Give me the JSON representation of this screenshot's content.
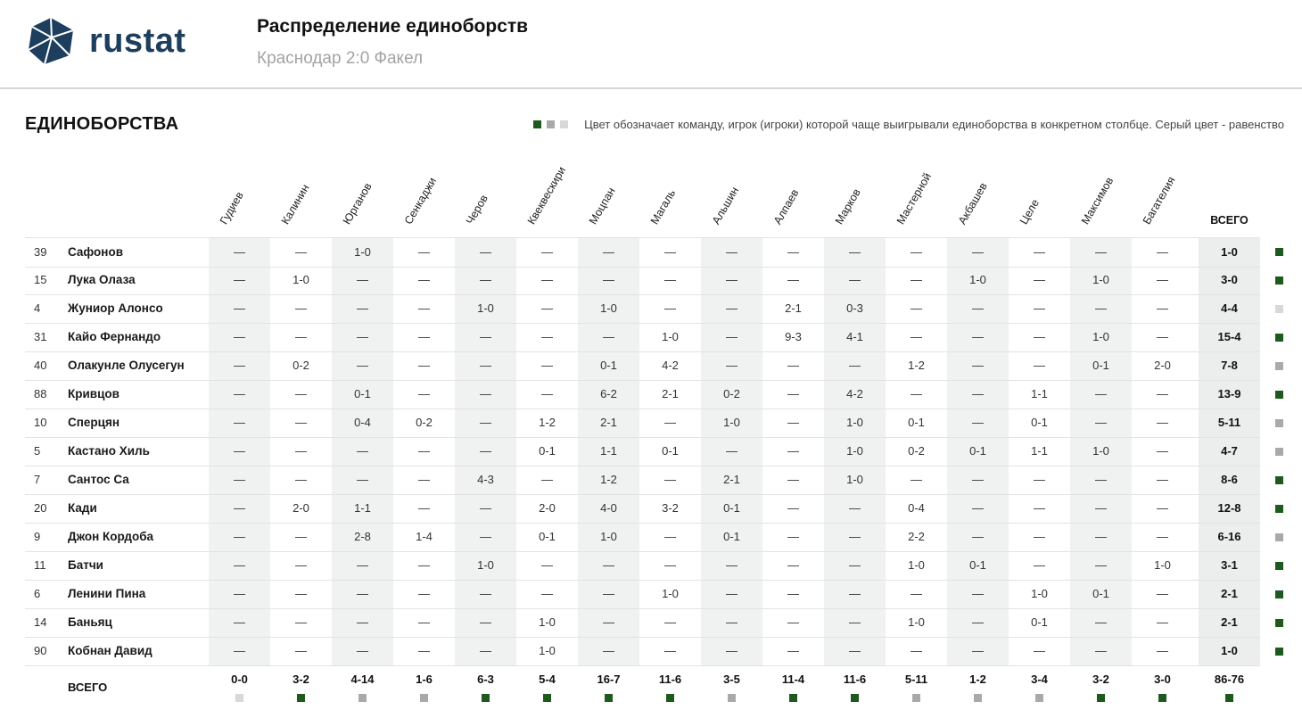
{
  "brand": {
    "logo_text": "rustat",
    "logo_icon": "rustat-logo-icon",
    "color": "#1d3e5c"
  },
  "header": {
    "title": "Распределение единоборств",
    "subtitle": "Краснодар 2:0 Факел"
  },
  "section": {
    "title": "ЕДИНОБОРСТВА"
  },
  "legend": {
    "text": "Цвет обозначает команду, игрок (игроки) которой чаще выигрывали единоборства в конкретном столбце. Серый цвет - равенство",
    "swatches": [
      {
        "team": "Краснодар",
        "color": "#1e5a1e"
      },
      {
        "team": "Факел",
        "color": "#a9a9a9"
      },
      {
        "team": "Равенство",
        "color": "#d8d8d8"
      }
    ]
  },
  "colors": {
    "dark": "#1e5a1e",
    "gray": "#a9a9a9",
    "light": "#d8d8d8"
  },
  "table": {
    "columns": [
      "Гудиев",
      "Калинин",
      "Юрганов",
      "Сенкаджи",
      "Черов",
      "Квеквескири",
      "Моцпан",
      "Магаль",
      "Альшин",
      "Алпаев",
      "Марков",
      "Мастерной",
      "Акбашев",
      "Целе",
      "Максимов",
      "Багателия"
    ],
    "total_label": "ВСЕГО",
    "rows": [
      {
        "number": "39",
        "name": "Сафонов",
        "cells": [
          "—",
          "—",
          "1-0",
          "—",
          "—",
          "—",
          "—",
          "—",
          "—",
          "—",
          "—",
          "—",
          "—",
          "—",
          "—",
          "—"
        ],
        "total": "1-0",
        "swatch": "dark"
      },
      {
        "number": "15",
        "name": "Лука Олаза",
        "cells": [
          "—",
          "1-0",
          "—",
          "—",
          "—",
          "—",
          "—",
          "—",
          "—",
          "—",
          "—",
          "—",
          "1-0",
          "—",
          "1-0",
          "—"
        ],
        "total": "3-0",
        "swatch": "dark"
      },
      {
        "number": "4",
        "name": "Жуниор Алонсо",
        "cells": [
          "—",
          "—",
          "—",
          "—",
          "1-0",
          "—",
          "1-0",
          "—",
          "—",
          "2-1",
          "0-3",
          "—",
          "—",
          "—",
          "—",
          "—"
        ],
        "total": "4-4",
        "swatch": "light"
      },
      {
        "number": "31",
        "name": "Кайо Фернандо",
        "cells": [
          "—",
          "—",
          "—",
          "—",
          "—",
          "—",
          "—",
          "1-0",
          "—",
          "9-3",
          "4-1",
          "—",
          "—",
          "—",
          "1-0",
          "—"
        ],
        "total": "15-4",
        "swatch": "dark"
      },
      {
        "number": "40",
        "name": "Олакунле Олусегун",
        "cells": [
          "—",
          "0-2",
          "—",
          "—",
          "—",
          "—",
          "0-1",
          "4-2",
          "—",
          "—",
          "—",
          "1-2",
          "—",
          "—",
          "0-1",
          "2-0"
        ],
        "total": "7-8",
        "swatch": "gray"
      },
      {
        "number": "88",
        "name": "Кривцов",
        "cells": [
          "—",
          "—",
          "0-1",
          "—",
          "—",
          "—",
          "6-2",
          "2-1",
          "0-2",
          "—",
          "4-2",
          "—",
          "—",
          "1-1",
          "—",
          "—"
        ],
        "total": "13-9",
        "swatch": "dark"
      },
      {
        "number": "10",
        "name": "Сперцян",
        "cells": [
          "—",
          "—",
          "0-4",
          "0-2",
          "—",
          "1-2",
          "2-1",
          "—",
          "1-0",
          "—",
          "1-0",
          "0-1",
          "—",
          "0-1",
          "—",
          "—"
        ],
        "total": "5-11",
        "swatch": "gray"
      },
      {
        "number": "5",
        "name": "Кастано Хиль",
        "cells": [
          "—",
          "—",
          "—",
          "—",
          "—",
          "0-1",
          "1-1",
          "0-1",
          "—",
          "—",
          "1-0",
          "0-2",
          "0-1",
          "1-1",
          "1-0",
          "—"
        ],
        "total": "4-7",
        "swatch": "gray"
      },
      {
        "number": "7",
        "name": "Сантос Са",
        "cells": [
          "—",
          "—",
          "—",
          "—",
          "4-3",
          "—",
          "1-2",
          "—",
          "2-1",
          "—",
          "1-0",
          "—",
          "—",
          "—",
          "—",
          "—"
        ],
        "total": "8-6",
        "swatch": "dark"
      },
      {
        "number": "20",
        "name": "Кади",
        "cells": [
          "—",
          "2-0",
          "1-1",
          "—",
          "—",
          "2-0",
          "4-0",
          "3-2",
          "0-1",
          "—",
          "—",
          "0-4",
          "—",
          "—",
          "—",
          "—"
        ],
        "total": "12-8",
        "swatch": "dark"
      },
      {
        "number": "9",
        "name": "Джон Кордоба",
        "cells": [
          "—",
          "—",
          "2-8",
          "1-4",
          "—",
          "0-1",
          "1-0",
          "—",
          "0-1",
          "—",
          "—",
          "2-2",
          "—",
          "—",
          "—",
          "—"
        ],
        "total": "6-16",
        "swatch": "gray"
      },
      {
        "number": "11",
        "name": "Батчи",
        "cells": [
          "—",
          "—",
          "—",
          "—",
          "1-0",
          "—",
          "—",
          "—",
          "—",
          "—",
          "—",
          "1-0",
          "0-1",
          "—",
          "—",
          "1-0"
        ],
        "total": "3-1",
        "swatch": "dark"
      },
      {
        "number": "6",
        "name": "Ленини Пина",
        "cells": [
          "—",
          "—",
          "—",
          "—",
          "—",
          "—",
          "—",
          "1-0",
          "—",
          "—",
          "—",
          "—",
          "—",
          "1-0",
          "0-1",
          "—"
        ],
        "total": "2-1",
        "swatch": "dark"
      },
      {
        "number": "14",
        "name": "Баньяц",
        "cells": [
          "—",
          "—",
          "—",
          "—",
          "—",
          "1-0",
          "—",
          "—",
          "—",
          "—",
          "—",
          "1-0",
          "—",
          "0-1",
          "—",
          "—"
        ],
        "total": "2-1",
        "swatch": "dark"
      },
      {
        "number": "90",
        "name": "Кобнан Давид",
        "cells": [
          "—",
          "—",
          "—",
          "—",
          "—",
          "1-0",
          "—",
          "—",
          "—",
          "—",
          "—",
          "—",
          "—",
          "—",
          "—",
          "—"
        ],
        "total": "1-0",
        "swatch": "dark"
      }
    ],
    "footer": {
      "label": "ВСЕГО",
      "values": [
        "0-0",
        "3-2",
        "4-14",
        "1-6",
        "6-3",
        "5-4",
        "16-7",
        "11-6",
        "3-5",
        "11-4",
        "11-6",
        "5-11",
        "1-2",
        "3-4",
        "3-2",
        "3-0"
      ],
      "total": "86-76",
      "swatches": [
        "light",
        "dark",
        "gray",
        "gray",
        "dark",
        "dark",
        "dark",
        "dark",
        "gray",
        "dark",
        "dark",
        "gray",
        "gray",
        "gray",
        "dark",
        "dark"
      ],
      "total_swatch": "dark"
    }
  }
}
